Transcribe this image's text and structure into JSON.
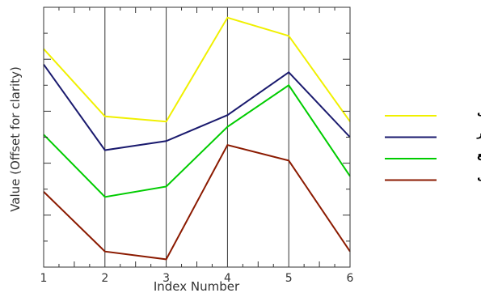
{
  "chart_data": {
    "type": "line",
    "title": "",
    "xlabel": "Index Number",
    "ylabel": "Value (Offset for clarity)",
    "x": [
      1,
      2,
      3,
      4,
      5,
      6
    ],
    "xlim": [
      1,
      6
    ],
    "ylim": [
      0,
      100
    ],
    "x_tick_labels": [
      "1",
      "2",
      "3",
      "4",
      "5",
      "6"
    ],
    "y_ticks_labeled": false,
    "grid": "vertical lines at each index",
    "legend_position": "right",
    "series": [
      {
        "name": "کشاورزی",
        "color": "#f0f000",
        "values": [
          84,
          58,
          56,
          96,
          89,
          56
        ]
      },
      {
        "name": "شهر",
        "color": "#1a1a6e",
        "values": [
          78,
          45,
          48.5,
          58.5,
          75,
          50
        ]
      },
      {
        "name": "مرتع",
        "color": "#00cc00",
        "values": [
          51,
          27,
          31,
          54,
          70,
          35
        ]
      },
      {
        "name": "جنگل",
        "color": "#8b1a00",
        "values": [
          29,
          6,
          3,
          47,
          41,
          6
        ]
      }
    ]
  }
}
